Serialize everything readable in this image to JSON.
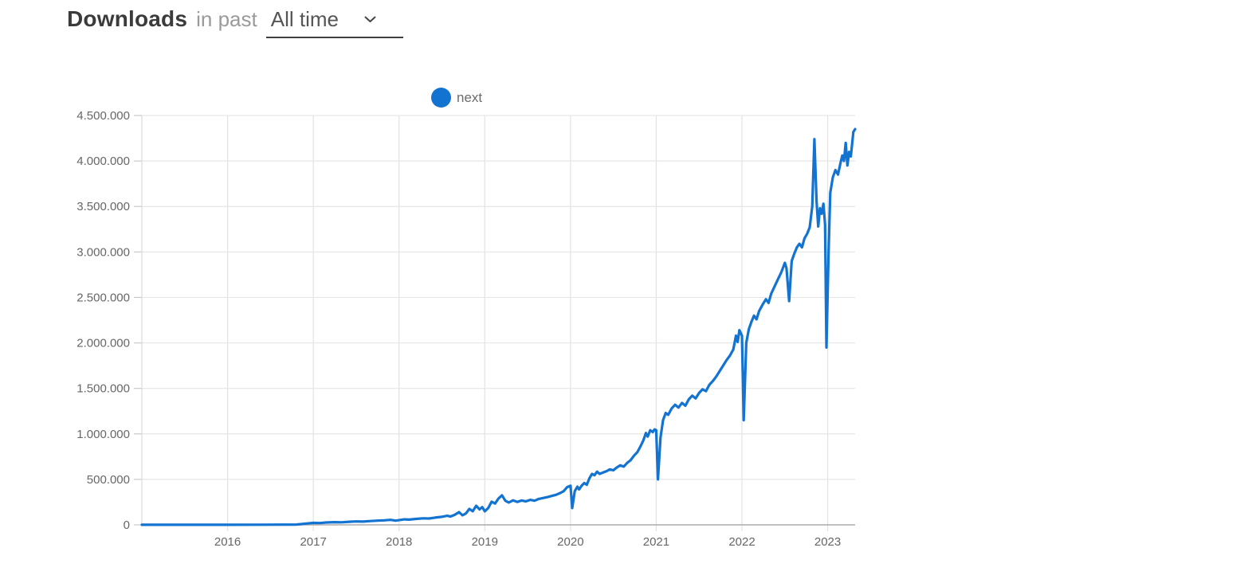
{
  "header": {
    "downloads_label": "Downloads",
    "in_past_label": "in past",
    "period_select": {
      "value": "All time"
    }
  },
  "chart_data": {
    "type": "line",
    "title": "Downloads in past All time",
    "xlabel": "",
    "ylabel": "",
    "grid": true,
    "legend_position": "top",
    "x_axis": {
      "min": 2015.0,
      "max": 2023.32,
      "ticks": [
        {
          "value": 2016,
          "label": "2016"
        },
        {
          "value": 2017,
          "label": "2017"
        },
        {
          "value": 2018,
          "label": "2018"
        },
        {
          "value": 2019,
          "label": "2019"
        },
        {
          "value": 2020,
          "label": "2020"
        },
        {
          "value": 2021,
          "label": "2021"
        },
        {
          "value": 2022,
          "label": "2022"
        },
        {
          "value": 2023,
          "label": "2023"
        }
      ]
    },
    "y_axis": {
      "min": 0,
      "max": 4500000,
      "ticks": [
        {
          "value": 0,
          "label": "0"
        },
        {
          "value": 500000,
          "label": "500.000"
        },
        {
          "value": 1000000,
          "label": "1.000.000"
        },
        {
          "value": 1500000,
          "label": "1.500.000"
        },
        {
          "value": 2000000,
          "label": "2.000.000"
        },
        {
          "value": 2500000,
          "label": "2.500.000"
        },
        {
          "value": 3000000,
          "label": "3.000.000"
        },
        {
          "value": 3500000,
          "label": "3.500.000"
        },
        {
          "value": 4000000,
          "label": "4.000.000"
        },
        {
          "value": 4500000,
          "label": "4.500.000"
        }
      ]
    },
    "series": [
      {
        "name": "next",
        "color": "#1273d1",
        "points": [
          [
            2015.0,
            500
          ],
          [
            2015.5,
            800
          ],
          [
            2016.0,
            1200
          ],
          [
            2016.4,
            2000
          ],
          [
            2016.8,
            3500
          ],
          [
            2016.85,
            8000
          ],
          [
            2016.92,
            15000
          ],
          [
            2017.0,
            22000
          ],
          [
            2017.08,
            20000
          ],
          [
            2017.15,
            26000
          ],
          [
            2017.25,
            30000
          ],
          [
            2017.33,
            28000
          ],
          [
            2017.42,
            34000
          ],
          [
            2017.5,
            38000
          ],
          [
            2017.58,
            36000
          ],
          [
            2017.67,
            42000
          ],
          [
            2017.75,
            46000
          ],
          [
            2017.83,
            50000
          ],
          [
            2017.9,
            55000
          ],
          [
            2017.96,
            46000
          ],
          [
            2018.0,
            52000
          ],
          [
            2018.06,
            60000
          ],
          [
            2018.12,
            58000
          ],
          [
            2018.2,
            66000
          ],
          [
            2018.28,
            72000
          ],
          [
            2018.35,
            70000
          ],
          [
            2018.42,
            80000
          ],
          [
            2018.5,
            88000
          ],
          [
            2018.56,
            100000
          ],
          [
            2018.6,
            92000
          ],
          [
            2018.65,
            110000
          ],
          [
            2018.7,
            140000
          ],
          [
            2018.74,
            105000
          ],
          [
            2018.78,
            125000
          ],
          [
            2018.82,
            175000
          ],
          [
            2018.86,
            150000
          ],
          [
            2018.9,
            210000
          ],
          [
            2018.94,
            170000
          ],
          [
            2018.97,
            195000
          ],
          [
            2019.0,
            150000
          ],
          [
            2019.04,
            185000
          ],
          [
            2019.08,
            255000
          ],
          [
            2019.12,
            235000
          ],
          [
            2019.16,
            290000
          ],
          [
            2019.2,
            325000
          ],
          [
            2019.24,
            265000
          ],
          [
            2019.28,
            245000
          ],
          [
            2019.33,
            270000
          ],
          [
            2019.38,
            252000
          ],
          [
            2019.43,
            268000
          ],
          [
            2019.48,
            258000
          ],
          [
            2019.53,
            275000
          ],
          [
            2019.58,
            265000
          ],
          [
            2019.63,
            285000
          ],
          [
            2019.68,
            295000
          ],
          [
            2019.73,
            305000
          ],
          [
            2019.78,
            318000
          ],
          [
            2019.83,
            330000
          ],
          [
            2019.88,
            350000
          ],
          [
            2019.92,
            370000
          ],
          [
            2019.96,
            415000
          ],
          [
            2020.0,
            430000
          ],
          [
            2020.02,
            185000
          ],
          [
            2020.05,
            370000
          ],
          [
            2020.08,
            420000
          ],
          [
            2020.1,
            390000
          ],
          [
            2020.13,
            430000
          ],
          [
            2020.16,
            460000
          ],
          [
            2020.19,
            440000
          ],
          [
            2020.22,
            510000
          ],
          [
            2020.25,
            560000
          ],
          [
            2020.28,
            545000
          ],
          [
            2020.31,
            585000
          ],
          [
            2020.34,
            560000
          ],
          [
            2020.38,
            575000
          ],
          [
            2020.42,
            590000
          ],
          [
            2020.46,
            610000
          ],
          [
            2020.5,
            600000
          ],
          [
            2020.54,
            630000
          ],
          [
            2020.58,
            655000
          ],
          [
            2020.62,
            640000
          ],
          [
            2020.66,
            680000
          ],
          [
            2020.7,
            710000
          ],
          [
            2020.74,
            760000
          ],
          [
            2020.78,
            800000
          ],
          [
            2020.82,
            870000
          ],
          [
            2020.85,
            930000
          ],
          [
            2020.88,
            1010000
          ],
          [
            2020.9,
            970000
          ],
          [
            2020.93,
            1040000
          ],
          [
            2020.96,
            1020000
          ],
          [
            2020.98,
            1050000
          ],
          [
            2021.0,
            1040000
          ],
          [
            2021.02,
            500000
          ],
          [
            2021.05,
            960000
          ],
          [
            2021.08,
            1150000
          ],
          [
            2021.11,
            1230000
          ],
          [
            2021.14,
            1210000
          ],
          [
            2021.18,
            1280000
          ],
          [
            2021.22,
            1320000
          ],
          [
            2021.26,
            1290000
          ],
          [
            2021.3,
            1340000
          ],
          [
            2021.34,
            1310000
          ],
          [
            2021.38,
            1380000
          ],
          [
            2021.42,
            1420000
          ],
          [
            2021.46,
            1390000
          ],
          [
            2021.5,
            1450000
          ],
          [
            2021.54,
            1490000
          ],
          [
            2021.58,
            1470000
          ],
          [
            2021.62,
            1540000
          ],
          [
            2021.66,
            1580000
          ],
          [
            2021.7,
            1630000
          ],
          [
            2021.74,
            1690000
          ],
          [
            2021.78,
            1750000
          ],
          [
            2021.82,
            1810000
          ],
          [
            2021.86,
            1860000
          ],
          [
            2021.9,
            1930000
          ],
          [
            2021.93,
            2080000
          ],
          [
            2021.95,
            2010000
          ],
          [
            2021.97,
            2140000
          ],
          [
            2022.0,
            2080000
          ],
          [
            2022.02,
            1150000
          ],
          [
            2022.05,
            2000000
          ],
          [
            2022.08,
            2150000
          ],
          [
            2022.11,
            2230000
          ],
          [
            2022.14,
            2300000
          ],
          [
            2022.17,
            2260000
          ],
          [
            2022.2,
            2350000
          ],
          [
            2022.24,
            2420000
          ],
          [
            2022.28,
            2480000
          ],
          [
            2022.31,
            2440000
          ],
          [
            2022.34,
            2540000
          ],
          [
            2022.38,
            2620000
          ],
          [
            2022.42,
            2700000
          ],
          [
            2022.46,
            2780000
          ],
          [
            2022.5,
            2880000
          ],
          [
            2022.52,
            2820000
          ],
          [
            2022.55,
            2460000
          ],
          [
            2022.58,
            2900000
          ],
          [
            2022.61,
            2980000
          ],
          [
            2022.64,
            3050000
          ],
          [
            2022.67,
            3090000
          ],
          [
            2022.7,
            3050000
          ],
          [
            2022.73,
            3150000
          ],
          [
            2022.76,
            3200000
          ],
          [
            2022.79,
            3270000
          ],
          [
            2022.82,
            3500000
          ],
          [
            2022.845,
            4240000
          ],
          [
            2022.87,
            3560000
          ],
          [
            2022.89,
            3280000
          ],
          [
            2022.91,
            3480000
          ],
          [
            2022.93,
            3420000
          ],
          [
            2022.95,
            3530000
          ],
          [
            2022.97,
            3300000
          ],
          [
            2022.985,
            1950000
          ],
          [
            2023.01,
            3000000
          ],
          [
            2023.03,
            3650000
          ],
          [
            2023.06,
            3820000
          ],
          [
            2023.09,
            3900000
          ],
          [
            2023.12,
            3850000
          ],
          [
            2023.15,
            3980000
          ],
          [
            2023.17,
            4060000
          ],
          [
            2023.19,
            4000000
          ],
          [
            2023.21,
            4200000
          ],
          [
            2023.23,
            3950000
          ],
          [
            2023.25,
            4100000
          ],
          [
            2023.27,
            4050000
          ],
          [
            2023.3,
            4320000
          ],
          [
            2023.32,
            4350000
          ]
        ]
      }
    ]
  }
}
